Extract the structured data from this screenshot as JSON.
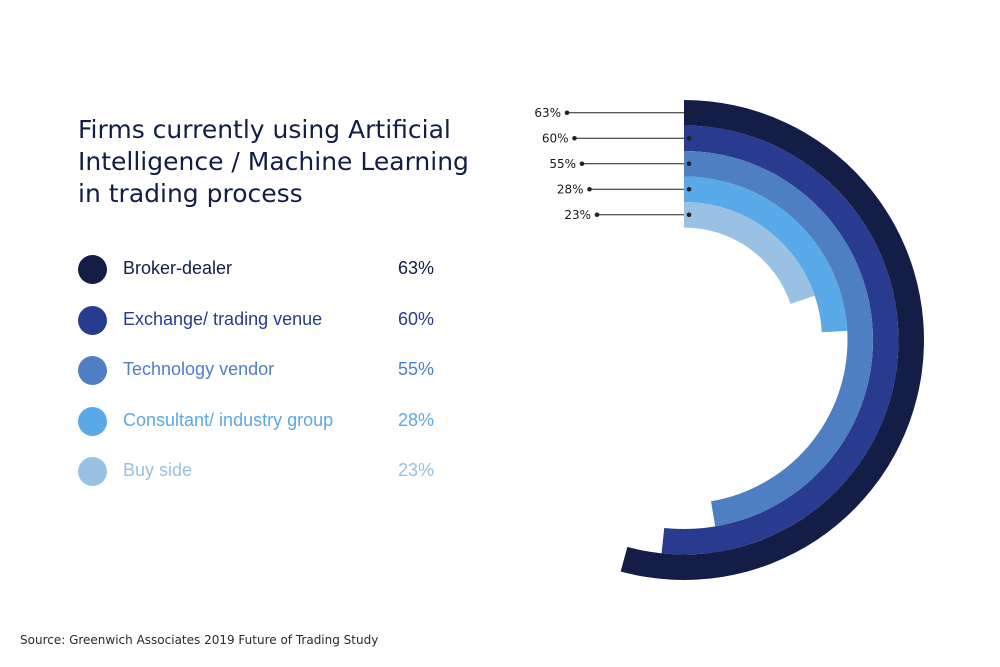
{
  "chart_data": {
    "type": "radial-bar",
    "title_lines": [
      "Firms currently using Artificial",
      "Intelligence / Machine Learning",
      "in trading process"
    ],
    "unit": "%",
    "series": [
      {
        "name": "Broker-dealer",
        "value": 63,
        "label": "63%",
        "color": "#131d45"
      },
      {
        "name": "Exchange/ trading venue",
        "value": 60,
        "label": "60%",
        "color": "#283b8e"
      },
      {
        "name": "Technology vendor",
        "value": 55,
        "label": "55%",
        "color": "#4f7fc3"
      },
      {
        "name": "Consultant/ industry group",
        "value": 28,
        "label": "28%",
        "color": "#5aa9e8"
      },
      {
        "name": "Buy side",
        "value": 23,
        "label": "23%",
        "color": "#99c1e3"
      }
    ]
  },
  "source": "Source: Greenwich Associates 2019 Future of Trading Study"
}
